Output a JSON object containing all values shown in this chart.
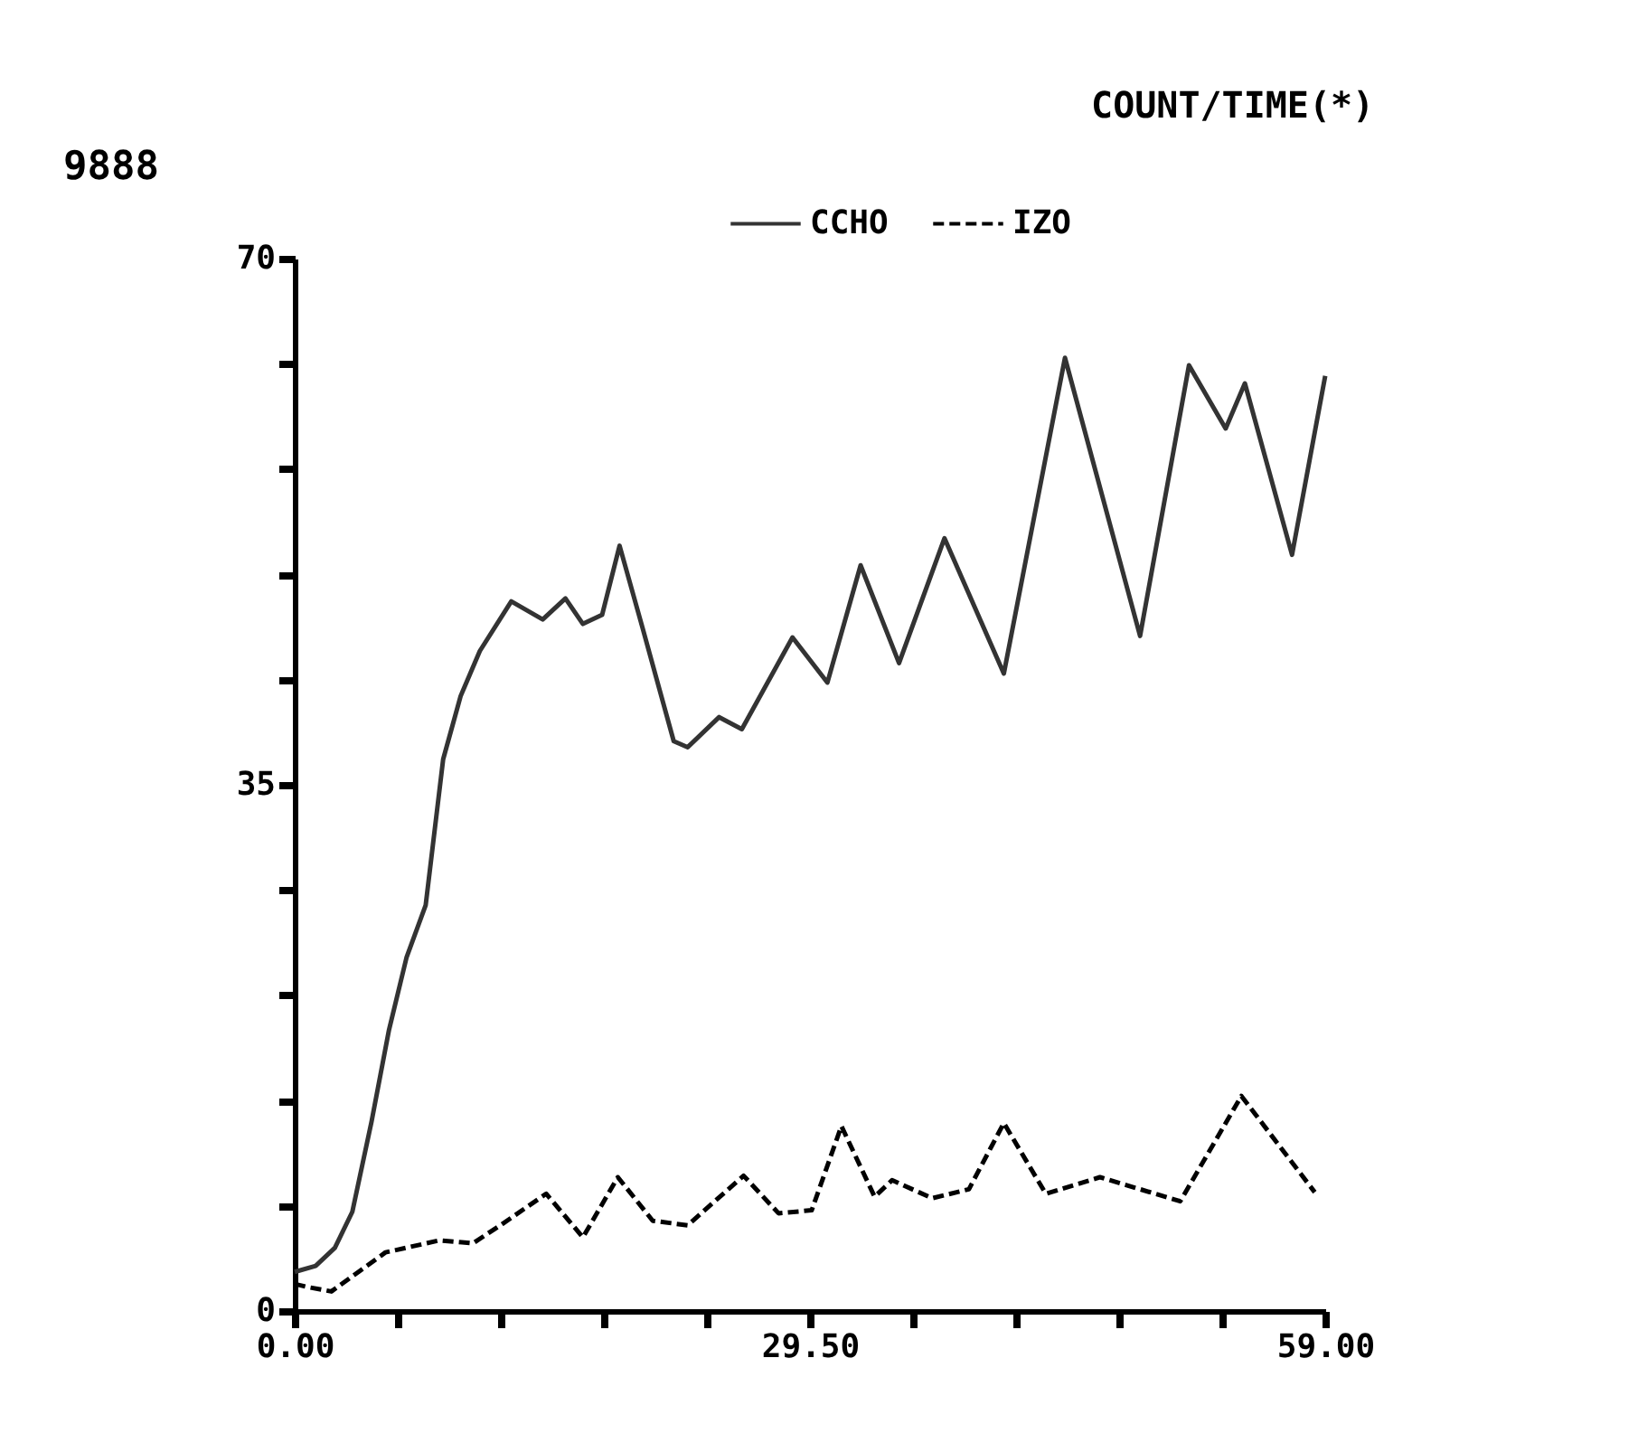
{
  "chart_data": {
    "type": "line",
    "title": "COUNT/TIME(*)",
    "annotations": [
      "9888"
    ],
    "xlim": [
      0,
      59
    ],
    "xticks": [
      {
        "value": 0,
        "label": "0.00"
      },
      {
        "value": 5.9,
        "label": null
      },
      {
        "value": 11.8,
        "label": null
      },
      {
        "value": 17.7,
        "label": null
      },
      {
        "value": 23.6,
        "label": null
      },
      {
        "value": 29.5,
        "label": "29.50"
      },
      {
        "value": 35.4,
        "label": null
      },
      {
        "value": 41.3,
        "label": null
      },
      {
        "value": 47.2,
        "label": null
      },
      {
        "value": 53.1,
        "label": null
      },
      {
        "value": 59,
        "label": "59.00"
      }
    ],
    "ylim": [
      0,
      70
    ],
    "yticks": [
      0,
      {
        "value": 7,
        "label": null
      },
      {
        "value": 14,
        "label": null
      },
      {
        "value": 21,
        "label": null
      },
      {
        "value": 28,
        "label": null
      },
      35,
      {
        "value": 42,
        "label": null
      },
      {
        "value": 49,
        "label": null
      },
      {
        "value": 56,
        "label": null
      },
      {
        "value": 63,
        "label": null
      },
      70
    ],
    "grid": false,
    "legend": "top right",
    "marker": "none",
    "series": [
      {
        "name": "CCHO",
        "color": "#333333",
        "line_style": "solid",
        "x": [
          0,
          1.2,
          2.3,
          3.3,
          4.4,
          5.4,
          6.4,
          7.5,
          8.5,
          9.5,
          10.6,
          12.4,
          14.2,
          15.5,
          16.5,
          17.6,
          18.6,
          19.9,
          21.7,
          22.5,
          24.3,
          25.6,
          28.5,
          30.5,
          32.4,
          34.6,
          37.2,
          40.6,
          44.1,
          48.4,
          51.2,
          53.3,
          54.4,
          57.1,
          59
        ],
        "values": [
          2.6,
          3,
          4.2,
          6.6,
          12.6,
          18.7,
          23.5,
          27,
          36.7,
          40.9,
          43.9,
          47.2,
          46,
          47.4,
          45.7,
          46.3,
          50.9,
          45.5,
          37.9,
          37.5,
          39.5,
          38.7,
          44.8,
          41.8,
          49.6,
          43.1,
          51.4,
          42.4,
          63.4,
          44.9,
          62.9,
          58.7,
          61.7,
          50.3,
          62.2
        ]
      },
      {
        "name": "IZO",
        "color": "#000000",
        "line_style": "dashed",
        "x": [
          0,
          0.7,
          2.1,
          5.2,
          8.3,
          10.2,
          11.9,
          14.4,
          16.5,
          18.5,
          20.5,
          22.5,
          25.7,
          27.7,
          29.6,
          31.3,
          33.2,
          34.2,
          36.5,
          38.6,
          40.6,
          43,
          46.1,
          50.7,
          54.2,
          58.4
        ],
        "values": [
          1.8,
          1.6,
          1.3,
          3.9,
          4.7,
          4.5,
          5.8,
          7.8,
          4.9,
          8.9,
          6,
          5.7,
          9,
          6.5,
          6.7,
          12.3,
          7.6,
          8.7,
          7.5,
          8.1,
          12.5,
          7.8,
          8.9,
          7.3,
          14.3,
          7.9
        ]
      }
    ]
  }
}
